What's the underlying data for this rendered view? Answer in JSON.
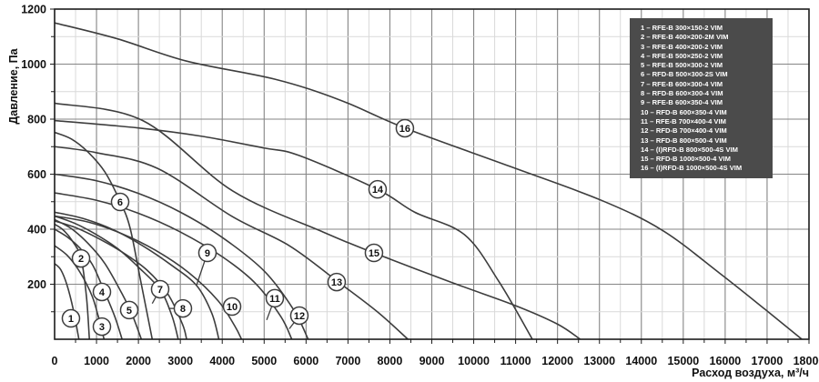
{
  "colors": {
    "curve": "#3d3d3d",
    "grid_minor": "#d9d9d9",
    "grid_major": "#858585",
    "axis_border": "#1c1c1c",
    "legend_bg": "#4b4b4b",
    "legend_text": "#ffffff",
    "marker_fill": "#ffffff"
  },
  "legend": {
    "items": [
      "1 – RFE-B 300×150-2 VIM",
      "2 – RFE-B 400×200-2M VIM",
      "3 – RFE-B 400×200-2 VIM",
      "4 – RFE-B 500×250-2 VIM",
      "5 – RFE-B 500×300-2 VIM",
      "6 – RFD-B 500×300-2S VIM",
      "7 – RFE-B 600×300-4 VIM",
      "8 – RFD-B 600×300-4 VIM",
      "9 – RFE-B 600×350-4 VIM",
      "10 – RFD-B 600×350-4 VIM",
      "11 – RFE-B 700×400-4 VIM",
      "12 – RFD-B 700×400-4 VIM",
      "13 – RFD-B 800×500-4 VIM",
      "14 – (I)RFD-B 800×500-4S VIM",
      "15 – RFD-B 1000×500-4 VIM",
      "16 – (I)RFD-B 1000×500-4S VIM"
    ]
  },
  "chart_data": {
    "type": "line",
    "xlabel": "Расход воздуха, м³/ч",
    "ylabel": "Давление, Па",
    "xlim": [
      0,
      18000
    ],
    "ylim": [
      0,
      1200
    ],
    "x_major_step": 1000,
    "x_minor_step": 500,
    "y_major_step": 200,
    "y_minor_step": 100,
    "x_tick_labels": [
      0,
      1000,
      2000,
      3000,
      4000,
      5000,
      6000,
      7000,
      8000,
      9000,
      10000,
      11000,
      12000,
      13000,
      14000,
      15000,
      16000,
      17000,
      18000
    ],
    "y_tick_labels": [
      200,
      400,
      600,
      800,
      1000,
      1200
    ],
    "grid": "on",
    "legend_position": "top-right",
    "series": [
      {
        "name": "1 – RFE-B 300×150-2 VIM",
        "points": [
          [
            0,
            275
          ],
          [
            150,
            252
          ],
          [
            300,
            195
          ],
          [
            450,
            105
          ],
          [
            580,
            0
          ]
        ]
      },
      {
        "name": "2 – RFE-B 400×200-2M VIM",
        "points": [
          [
            0,
            418
          ],
          [
            200,
            398
          ],
          [
            420,
            358
          ],
          [
            630,
            295
          ],
          [
            760,
            155
          ],
          [
            830,
            0
          ]
        ]
      },
      {
        "name": "3 – RFE-B 400×200-2 VIM",
        "points": [
          [
            0,
            340
          ],
          [
            300,
            305
          ],
          [
            600,
            245
          ],
          [
            900,
            155
          ],
          [
            1080,
            60
          ],
          [
            1180,
            0
          ]
        ]
      },
      {
        "name": "4 – RFE-B 500×250-2 VIM",
        "points": [
          [
            0,
            400
          ],
          [
            300,
            372
          ],
          [
            600,
            332
          ],
          [
            900,
            272
          ],
          [
            1130,
            195
          ],
          [
            1430,
            85
          ],
          [
            1610,
            0
          ]
        ]
      },
      {
        "name": "5 – RFE-B 500×300-2 VIM",
        "points": [
          [
            0,
            435
          ],
          [
            400,
            402
          ],
          [
            800,
            348
          ],
          [
            1200,
            275
          ],
          [
            1600,
            168
          ],
          [
            1850,
            90
          ],
          [
            2070,
            0
          ]
        ]
      },
      {
        "name": "6 – RFD-B 500×300-2S VIM",
        "points": [
          [
            0,
            752
          ],
          [
            400,
            728
          ],
          [
            800,
            680
          ],
          [
            1200,
            608
          ],
          [
            1565,
            500
          ],
          [
            1800,
            405
          ],
          [
            2050,
            215
          ],
          [
            2330,
            0
          ]
        ]
      },
      {
        "name": "7 – RFE-B 600×300-4 VIM",
        "points": [
          [
            0,
            448
          ],
          [
            500,
            420
          ],
          [
            1000,
            380
          ],
          [
            1500,
            330
          ],
          [
            2000,
            262
          ],
          [
            2520,
            180
          ],
          [
            2800,
            85
          ],
          [
            2950,
            0
          ]
        ]
      },
      {
        "name": "8 – RFD-B 600×300-4 VIM",
        "points": [
          [
            0,
            430
          ],
          [
            500,
            406
          ],
          [
            1000,
            370
          ],
          [
            1600,
            318
          ],
          [
            2200,
            252
          ],
          [
            2700,
            165
          ],
          [
            3050,
            55
          ],
          [
            3150,
            0
          ]
        ]
      },
      {
        "name": "9 – RFE-B 600×350-4 VIM",
        "points": [
          [
            0,
            462
          ],
          [
            700,
            438
          ],
          [
            1400,
            398
          ],
          [
            2100,
            340
          ],
          [
            2800,
            268
          ],
          [
            3390,
            195
          ],
          [
            3750,
            95
          ],
          [
            3920,
            0
          ]
        ]
      },
      {
        "name": "10 – RFD-B 600×350-4 VIM",
        "points": [
          [
            0,
            448
          ],
          [
            800,
            426
          ],
          [
            1600,
            384
          ],
          [
            2400,
            324
          ],
          [
            3200,
            242
          ],
          [
            3900,
            140
          ],
          [
            4300,
            48
          ],
          [
            4460,
            0
          ]
        ]
      },
      {
        "name": "11 – RFE-B 700×400-4 VIM",
        "points": [
          [
            0,
            532
          ],
          [
            1000,
            505
          ],
          [
            2000,
            458
          ],
          [
            3000,
            390
          ],
          [
            4000,
            300
          ],
          [
            4800,
            202
          ],
          [
            5400,
            82
          ],
          [
            5660,
            0
          ]
        ]
      },
      {
        "name": "12 – RFD-B 700×400-4 VIM",
        "points": [
          [
            0,
            600
          ],
          [
            1000,
            576
          ],
          [
            2000,
            530
          ],
          [
            3000,
            462
          ],
          [
            4000,
            370
          ],
          [
            5000,
            248
          ],
          [
            5700,
            108
          ],
          [
            6050,
            0
          ]
        ]
      },
      {
        "name": "13 – RFD-B 800×500-4 VIM",
        "points": [
          [
            0,
            700
          ],
          [
            1000,
            678
          ],
          [
            2455,
            621
          ],
          [
            4240,
            446
          ],
          [
            5600,
            340
          ],
          [
            6770,
            208
          ],
          [
            7700,
            100
          ],
          [
            8430,
            0
          ]
        ]
      },
      {
        "name": "14 – (I)RFD-B 800×500-4S VIM",
        "points": [
          [
            0,
            795
          ],
          [
            2000,
            768
          ],
          [
            3500,
            738
          ],
          [
            5000,
            695
          ],
          [
            5830,
            668
          ],
          [
            7700,
            545
          ],
          [
            8590,
            462
          ],
          [
            9780,
            380
          ],
          [
            10600,
            210
          ],
          [
            11400,
            0
          ]
        ]
      },
      {
        "name": "15 – RFD-B 1000×500-4 VIM",
        "points": [
          [
            0,
            858
          ],
          [
            2100,
            795
          ],
          [
            4240,
            540
          ],
          [
            6400,
            390
          ],
          [
            7600,
            315
          ],
          [
            9500,
            205
          ],
          [
            11000,
            122
          ],
          [
            12000,
            55
          ],
          [
            12540,
            0
          ]
        ]
      },
      {
        "name": "16 – (I)RFD-B 1000×500-4S VIM",
        "points": [
          [
            0,
            1150
          ],
          [
            1500,
            1092
          ],
          [
            3150,
            1011
          ],
          [
            5260,
            945
          ],
          [
            6800,
            870
          ],
          [
            8370,
            767
          ],
          [
            10870,
            628
          ],
          [
            13030,
            506
          ],
          [
            14490,
            397
          ],
          [
            15860,
            241
          ],
          [
            16950,
            109
          ],
          [
            17830,
            0
          ]
        ]
      }
    ],
    "markers": [
      {
        "n": "1",
        "flow": 390,
        "pa": 76,
        "leader": null
      },
      {
        "n": "2",
        "flow": 630,
        "pa": 294,
        "leader": null
      },
      {
        "n": "3",
        "flow": 1129,
        "pa": 46,
        "leader": [
          1020,
          95
        ]
      },
      {
        "n": "4",
        "flow": 1129,
        "pa": 172,
        "leader": null
      },
      {
        "n": "5",
        "flow": 1780,
        "pa": 106,
        "leader": null
      },
      {
        "n": "6",
        "flow": 1563,
        "pa": 499,
        "leader": null
      },
      {
        "n": "7",
        "flow": 2518,
        "pa": 182,
        "leader": [
          2330,
          130
        ]
      },
      {
        "n": "8",
        "flow": 3061,
        "pa": 112,
        "leader": [
          2720,
          112
        ]
      },
      {
        "n": "9",
        "flow": 3647,
        "pa": 314,
        "leader": [
          3390,
          198
        ]
      },
      {
        "n": "10",
        "flow": 4234,
        "pa": 119,
        "leader": null
      },
      {
        "n": "11",
        "flow": 5254,
        "pa": 149,
        "leader": [
          5060,
          70
        ]
      },
      {
        "n": "12",
        "flow": 5840,
        "pa": 86,
        "leader": [
          5600,
          38
        ]
      },
      {
        "n": "13",
        "flow": 6730,
        "pa": 208,
        "leader": null
      },
      {
        "n": "14",
        "flow": 7707,
        "pa": 545,
        "leader": null
      },
      {
        "n": "15",
        "flow": 7620,
        "pa": 314,
        "leader": null
      },
      {
        "n": "16",
        "flow": 8358,
        "pa": 767,
        "leader": null
      }
    ]
  }
}
